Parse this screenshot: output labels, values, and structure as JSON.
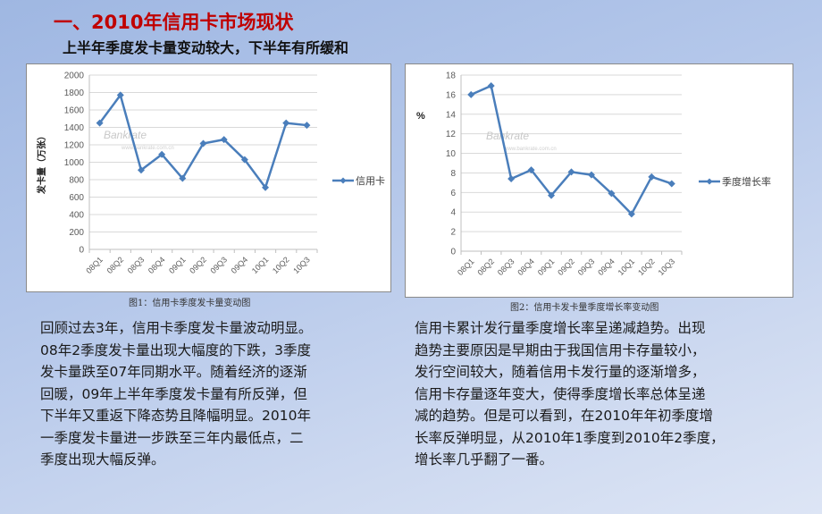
{
  "header": {
    "title": "一、2010年信用卡市场现状",
    "subtitle": "上半年季度发卡量变动较大，下半年有所缓和"
  },
  "colors": {
    "title": "#c00000",
    "series": "#4a7ebb",
    "grid": "#d9d9d9",
    "axis_text": "#595959"
  },
  "chart_data": [
    {
      "type": "line",
      "title": "",
      "caption": "图1：信用卡季度发卡量变动图",
      "categories": [
        "08Q1",
        "08Q2",
        "08Q3",
        "08Q4",
        "09Q1",
        "09Q2",
        "09Q3",
        "09Q4",
        "10Q1",
        "10Q2",
        "10Q3"
      ],
      "series": [
        {
          "name": "信用卡",
          "values": [
            1450,
            1770,
            910,
            1090,
            815,
            1215,
            1260,
            1030,
            710,
            1450,
            1425
          ]
        }
      ],
      "xlabel": "",
      "ylabel": "发卡量（万张）",
      "ylim": [
        0,
        2000
      ],
      "yticks": [
        0,
        200,
        400,
        600,
        800,
        1000,
        1200,
        1400,
        1600,
        1800,
        2000
      ],
      "grid": true,
      "legend_position": "right",
      "watermark": "Bankrate 中国 www.bankrate.com.cn"
    },
    {
      "type": "line",
      "title": "",
      "caption": "图2：信用卡发卡量季度增长率变动图",
      "categories": [
        "08Q1",
        "08Q2",
        "08Q3",
        "08Q4",
        "09Q1",
        "09Q2",
        "09Q3",
        "09Q4",
        "10Q1",
        "10Q2",
        "10Q3"
      ],
      "series": [
        {
          "name": "季度增长率",
          "values": [
            16.0,
            16.9,
            7.4,
            8.3,
            5.7,
            8.1,
            7.8,
            5.9,
            3.8,
            7.6,
            6.9
          ]
        }
      ],
      "xlabel": "",
      "ylabel": "%",
      "ylim": [
        0,
        18
      ],
      "yticks": [
        0,
        2,
        4,
        6,
        8,
        10,
        12,
        14,
        16,
        18
      ],
      "grid": true,
      "legend_position": "right",
      "watermark": "Bankrate 中国 www.bankrate.com.cn"
    }
  ],
  "paragraphs": {
    "left": [
      "回顾过去3年，信用卡季度发卡量波动明显。",
      "08年2季度发卡量出现大幅度的下跌，3季度",
      "发卡量跌至07年同期水平。随着经济的逐渐",
      "回暖，09年上半年季度发卡量有所反弹，但",
      "下半年又重返下降态势且降幅明显。2010年",
      "一季度发卡量进一步跌至三年内最低点，二",
      "季度出现大幅反弹。"
    ],
    "right": [
      "信用卡累计发行量季度增长率呈递减趋势。出现",
      "趋势主要原因是早期由于我国信用卡存量较小，",
      "发行空间较大，随着信用卡发行量的逐渐增多，",
      "信用卡存量逐年变大，使得季度增长率总体呈递",
      "减的趋势。但是可以看到，在2010年年初季度增",
      "长率反弹明显，从2010年1季度到2010年2季度，",
      "增长率几乎翻了一番。"
    ]
  }
}
